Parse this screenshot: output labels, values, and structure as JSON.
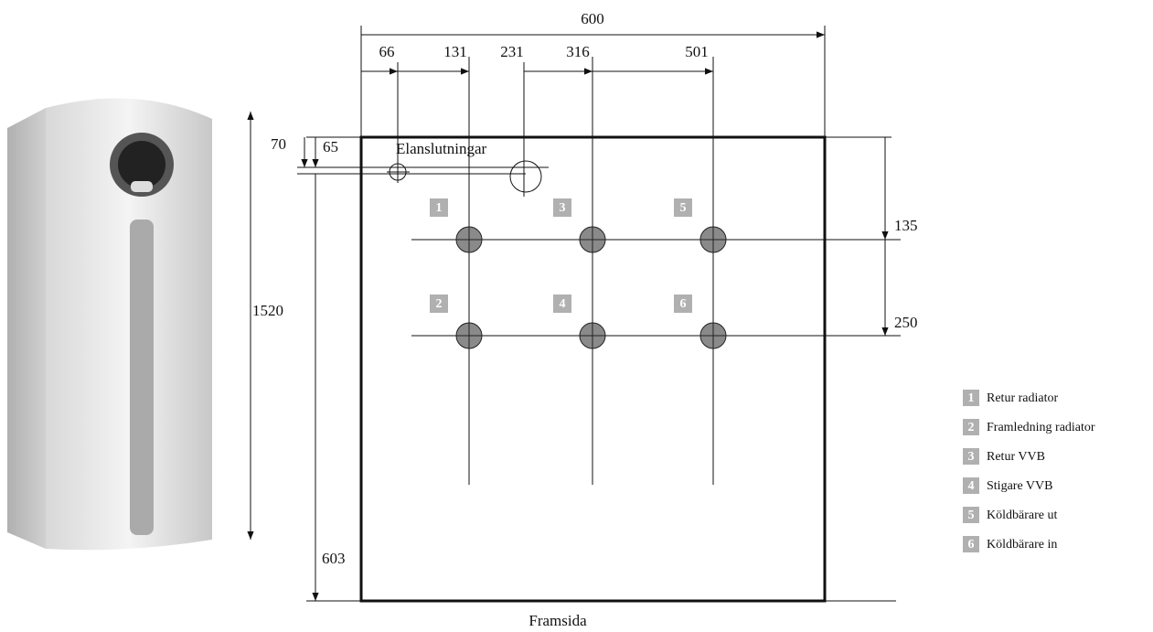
{
  "dimensions": {
    "width": "600",
    "top": [
      "66",
      "131",
      "231",
      "316",
      "501"
    ],
    "left_70": "70",
    "left_65": "65",
    "height": "1520",
    "right": [
      "135",
      "250"
    ],
    "depth": "603"
  },
  "labels": {
    "electrical": "Elanslutningar",
    "front": "Framsida"
  },
  "markers": [
    "1",
    "3",
    "5",
    "2",
    "4",
    "6"
  ],
  "legend": [
    {
      "number": "1",
      "text": "Retur radiator"
    },
    {
      "number": "2",
      "text": "Framledning radiator"
    },
    {
      "number": "3",
      "text": "Retur VVB"
    },
    {
      "number": "4",
      "text": "Stigare VVB"
    },
    {
      "number": "5",
      "text": "Köldbärare ut"
    },
    {
      "number": "6",
      "text": "Köldbärare in"
    }
  ]
}
